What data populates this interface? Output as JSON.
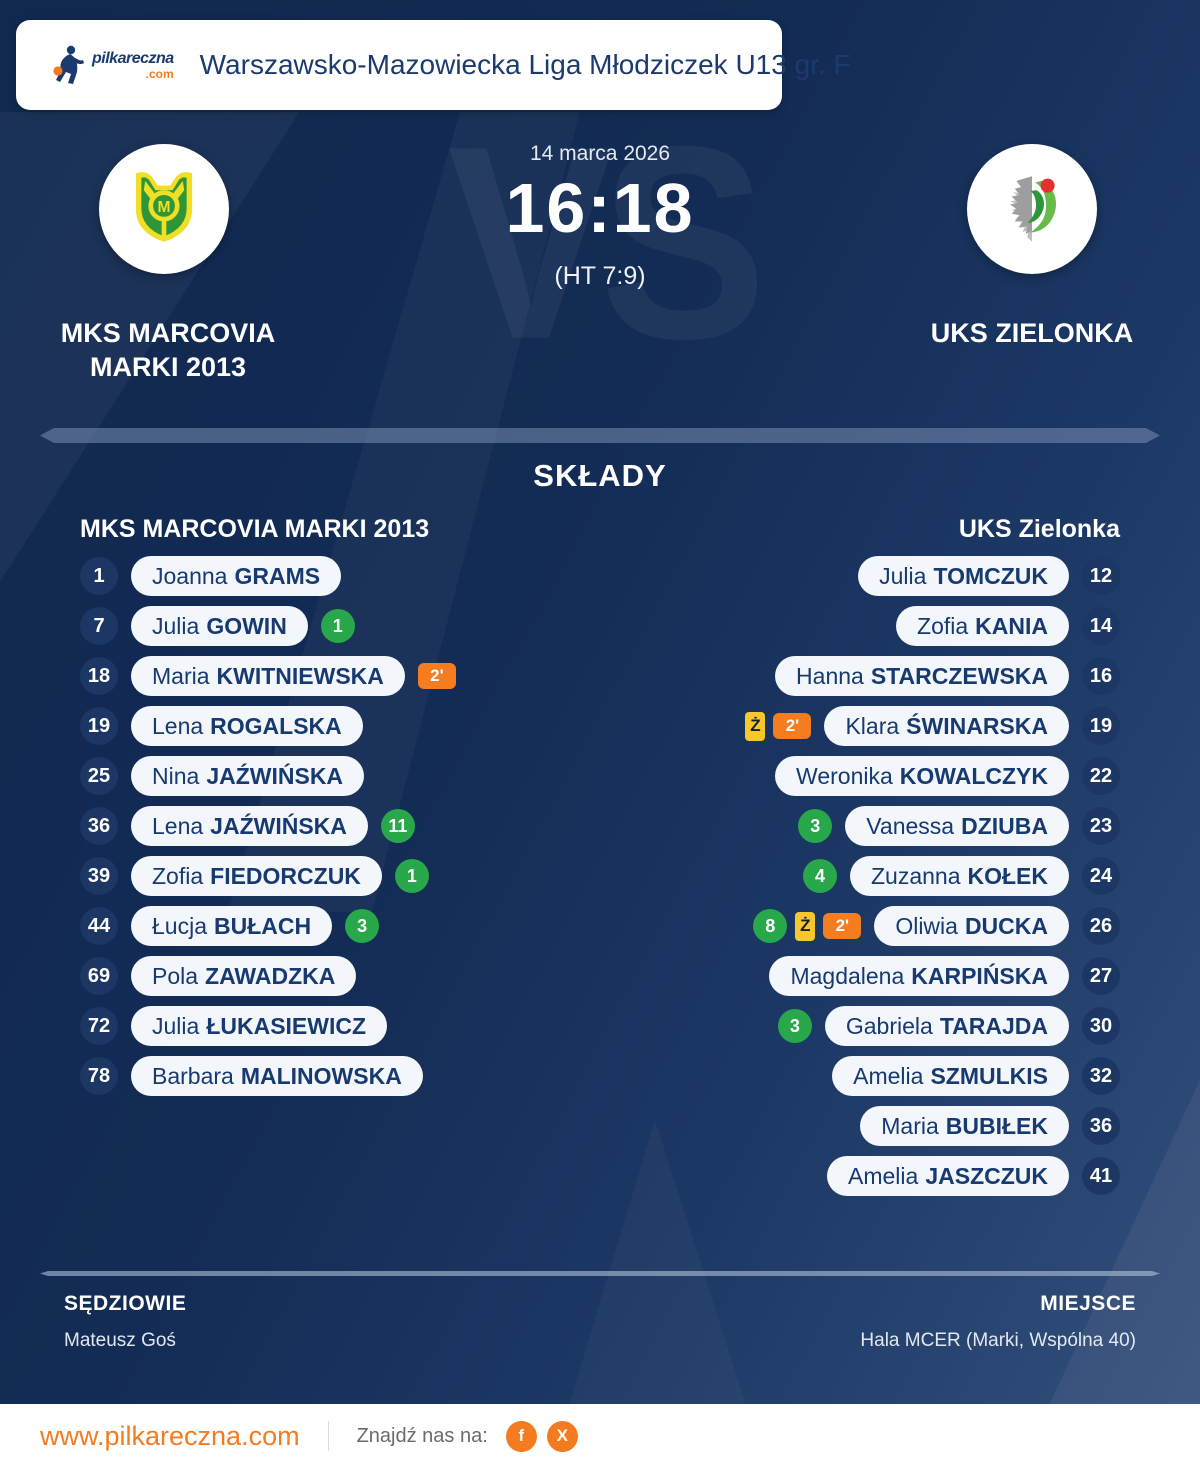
{
  "colors": {
    "background_navy": "#132c55",
    "accent_orange": "#f47b20",
    "goal_green": "#28a74b",
    "card_yellow": "#f8c72d",
    "suspension_orange": "#f57d20",
    "pill_background": "#f3f6fb",
    "text_navy": "#1b3a6d"
  },
  "header": {
    "brand": "pilkareczna",
    "brand_suffix": ".com",
    "title": "Warszawsko-Mazowiecka Liga Młodziczek U13 gr. F"
  },
  "match": {
    "date": "14 marca 2026",
    "score": "16:18",
    "halftime": "(HT 7:9)",
    "vs": "VS",
    "home": {
      "name_line1": "MKS MARCOVIA",
      "name_line2": "MARKI 2013"
    },
    "away": {
      "name_line1": "UKS ZIELONKA",
      "name_line2": ""
    }
  },
  "lineups": {
    "heading": "SKŁADY",
    "home_header": "MKS MARCOVIA MARKI 2013",
    "away_header": "UKS Zielonka",
    "home_players": [
      {
        "number": "1",
        "first": "Joanna",
        "last": "GRAMS",
        "badges": []
      },
      {
        "number": "7",
        "first": "Julia",
        "last": "GOWIN",
        "badges": [
          {
            "type": "goals",
            "value": "1"
          }
        ]
      },
      {
        "number": "18",
        "first": "Maria",
        "last": "KWITNIEWSKA",
        "badges": [
          {
            "type": "suspension",
            "value": "2'"
          }
        ]
      },
      {
        "number": "19",
        "first": "Lena",
        "last": "ROGALSKA",
        "badges": []
      },
      {
        "number": "25",
        "first": "Nina",
        "last": "JAŹWIŃSKA",
        "badges": []
      },
      {
        "number": "36",
        "first": "Lena",
        "last": "JAŹWIŃSKA",
        "badges": [
          {
            "type": "goals",
            "value": "11"
          }
        ]
      },
      {
        "number": "39",
        "first": "Zofia",
        "last": "FIEDORCZUK",
        "badges": [
          {
            "type": "goals",
            "value": "1"
          }
        ]
      },
      {
        "number": "44",
        "first": "Łucja",
        "last": "BUŁACH",
        "badges": [
          {
            "type": "goals",
            "value": "3"
          }
        ]
      },
      {
        "number": "69",
        "first": "Pola",
        "last": "ZAWADZKA",
        "badges": []
      },
      {
        "number": "72",
        "first": "Julia",
        "last": "ŁUKASIEWICZ",
        "badges": []
      },
      {
        "number": "78",
        "first": "Barbara",
        "last": "MALINOWSKA",
        "badges": []
      }
    ],
    "away_players": [
      {
        "number": "12",
        "first": "Julia",
        "last": "TOMCZUK",
        "badges": []
      },
      {
        "number": "14",
        "first": "Zofia",
        "last": "KANIA",
        "badges": []
      },
      {
        "number": "16",
        "first": "Hanna",
        "last": "STARCZEWSKA",
        "badges": []
      },
      {
        "number": "19",
        "first": "Klara",
        "last": "ŚWINARSKA",
        "badges": [
          {
            "type": "yellow-card",
            "value": "Ż"
          },
          {
            "type": "suspension",
            "value": "2'"
          }
        ]
      },
      {
        "number": "22",
        "first": "Weronika",
        "last": "KOWALCZYK",
        "badges": []
      },
      {
        "number": "23",
        "first": "Vanessa",
        "last": "DZIUBA",
        "badges": [
          {
            "type": "goals",
            "value": "3"
          }
        ]
      },
      {
        "number": "24",
        "first": "Zuzanna",
        "last": "KOŁEK",
        "badges": [
          {
            "type": "goals",
            "value": "4"
          }
        ]
      },
      {
        "number": "26",
        "first": "Oliwia",
        "last": "DUCKA",
        "badges": [
          {
            "type": "goals",
            "value": "8"
          },
          {
            "type": "yellow-card",
            "value": "Ż"
          },
          {
            "type": "suspension",
            "value": "2'"
          }
        ]
      },
      {
        "number": "27",
        "first": "Magdalena",
        "last": "KARPIŃSKA",
        "badges": []
      },
      {
        "number": "30",
        "first": "Gabriela",
        "last": "TARAJDA",
        "badges": [
          {
            "type": "goals",
            "value": "3"
          }
        ]
      },
      {
        "number": "32",
        "first": "Amelia",
        "last": "SZMULKIS",
        "badges": []
      },
      {
        "number": "36",
        "first": "Maria",
        "last": "BUBIŁEK",
        "badges": []
      },
      {
        "number": "41",
        "first": "Amelia",
        "last": "JASZCZUK",
        "badges": []
      }
    ]
  },
  "officials": {
    "referees_label": "SĘDZIOWIE",
    "referees": "Mateusz Goś",
    "venue_label": "MIEJSCE",
    "venue": "Hala MCER (Marki, Wspólna 40)"
  },
  "footer": {
    "website": "www.pilkareczna.com",
    "find_us": "Znajdź nas na:",
    "social": [
      {
        "name": "facebook",
        "glyph": "f"
      },
      {
        "name": "x-twitter",
        "glyph": "X"
      }
    ]
  }
}
